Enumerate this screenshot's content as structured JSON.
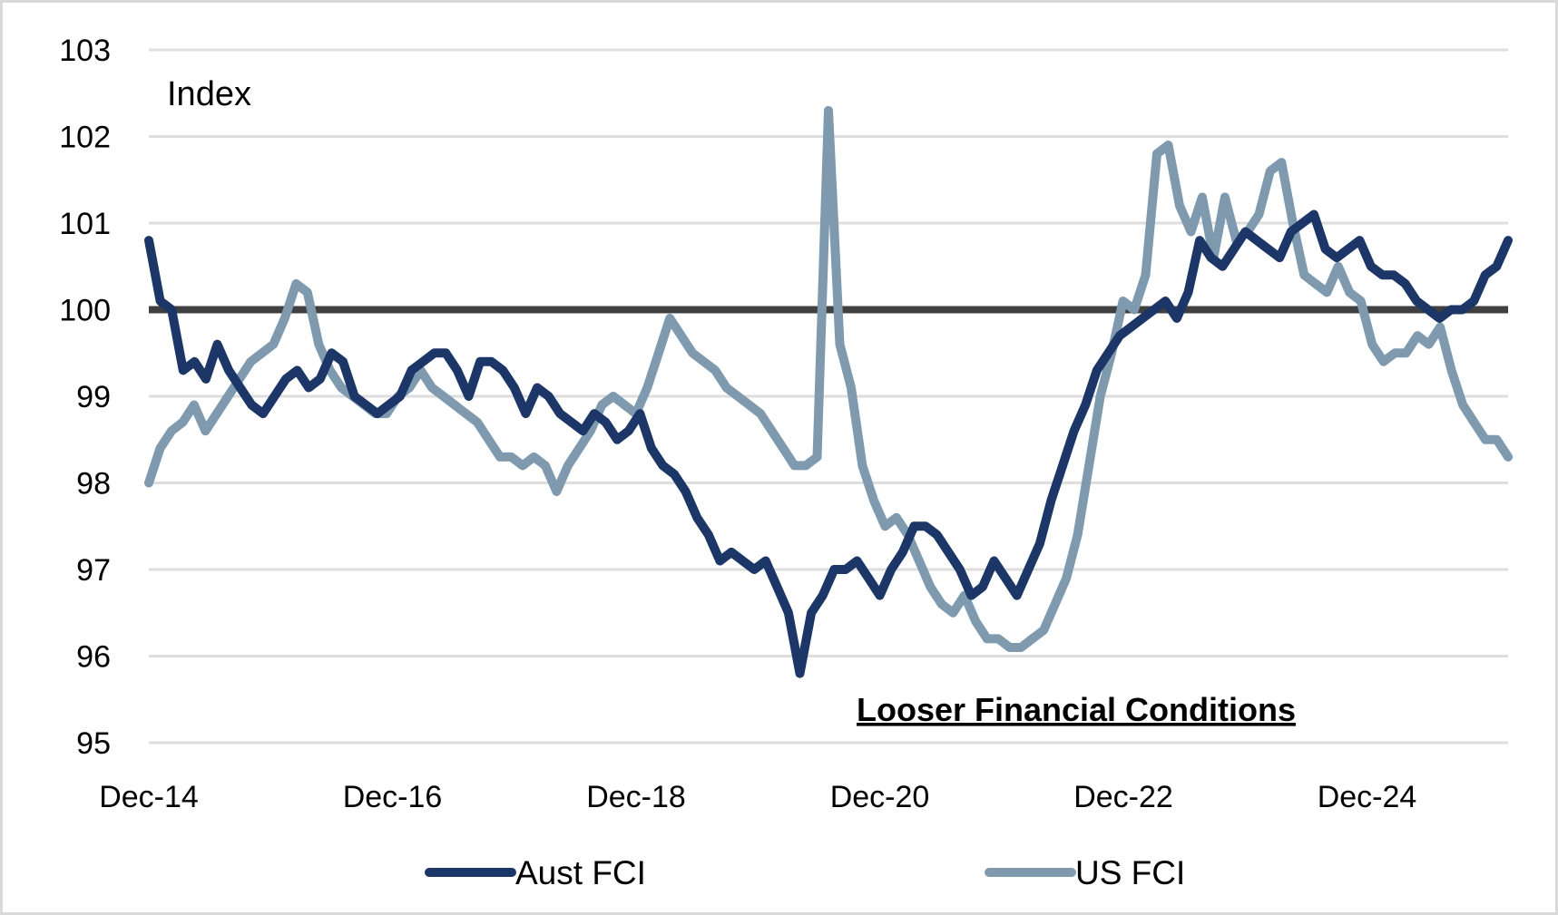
{
  "chart_data": {
    "type": "line",
    "title": "",
    "ylabel": "Index",
    "xlabel": "",
    "ylim": [
      95,
      103
    ],
    "yticks": [
      103,
      102,
      101,
      100,
      99,
      98,
      97,
      96,
      95
    ],
    "ytick_labels": [
      "103",
      "102",
      "101",
      "100",
      "99",
      "98",
      "97",
      "96",
      "95"
    ],
    "xlim": [
      "2014-12",
      "2026-02"
    ],
    "xtick_labels": [
      "Dec-14",
      "Dec-16",
      "Dec-18",
      "Dec-20",
      "Dec-22",
      "Dec-24"
    ],
    "grid": true,
    "reference_line": {
      "value": 100,
      "color": "#404040"
    },
    "annotation": "Looser Financial Conditions",
    "legend": {
      "placement": "bottom",
      "entries": [
        "Aust FCI",
        "US FCI"
      ]
    },
    "series": [
      {
        "name": "Aust FCI",
        "color": "#1b3667",
        "x_start": "2014-12",
        "frequency": "monthly",
        "values": [
          100.8,
          100.1,
          100.0,
          99.3,
          99.4,
          99.2,
          99.6,
          99.3,
          99.1,
          98.9,
          98.8,
          99.0,
          99.2,
          99.3,
          99.1,
          99.2,
          99.5,
          99.4,
          99.0,
          98.9,
          98.8,
          98.9,
          99.0,
          99.3,
          99.4,
          99.5,
          99.5,
          99.3,
          99.0,
          99.4,
          99.4,
          99.3,
          99.1,
          98.8,
          99.1,
          99.0,
          98.8,
          98.7,
          98.6,
          98.8,
          98.7,
          98.5,
          98.6,
          98.8,
          98.4,
          98.2,
          98.1,
          97.9,
          97.6,
          97.4,
          97.1,
          97.2,
          97.1,
          97.0,
          97.1,
          96.8,
          96.5,
          95.8,
          96.5,
          96.7,
          97.0,
          97.0,
          97.1,
          96.9,
          96.7,
          97.0,
          97.2,
          97.5,
          97.5,
          97.4,
          97.2,
          97.0,
          96.7,
          96.8,
          97.1,
          96.9,
          96.7,
          97.0,
          97.3,
          97.8,
          98.2,
          98.6,
          98.9,
          99.3,
          99.5,
          99.7,
          99.8,
          99.9,
          100.0,
          100.1,
          99.9,
          100.2,
          100.8,
          100.6,
          100.5,
          100.7,
          100.9,
          100.8,
          100.7,
          100.6,
          100.9,
          101.0,
          101.1,
          100.7,
          100.6,
          100.7,
          100.8,
          100.5,
          100.4,
          100.4,
          100.3,
          100.1,
          100.0,
          99.9,
          100.0,
          100.0,
          100.1,
          100.4,
          100.5,
          100.8
        ]
      },
      {
        "name": "US FCI",
        "color": "#7f9aaf",
        "x_start": "2014-12",
        "frequency": "monthly",
        "values": [
          98.0,
          98.4,
          98.6,
          98.7,
          98.9,
          98.6,
          98.8,
          99.0,
          99.2,
          99.4,
          99.5,
          99.6,
          99.9,
          100.3,
          100.2,
          99.6,
          99.3,
          99.1,
          99.0,
          98.9,
          98.8,
          98.8,
          99.0,
          99.1,
          99.3,
          99.1,
          99.0,
          98.9,
          98.8,
          98.7,
          98.5,
          98.3,
          98.3,
          98.2,
          98.3,
          98.2,
          97.9,
          98.2,
          98.4,
          98.6,
          98.9,
          99.0,
          98.9,
          98.8,
          99.1,
          99.5,
          99.9,
          99.7,
          99.5,
          99.4,
          99.3,
          99.1,
          99.0,
          98.9,
          98.8,
          98.6,
          98.4,
          98.2,
          98.2,
          98.3,
          102.3,
          99.6,
          99.1,
          98.2,
          97.8,
          97.5,
          97.6,
          97.4,
          97.1,
          96.8,
          96.6,
          96.5,
          96.7,
          96.4,
          96.2,
          96.2,
          96.1,
          96.1,
          96.2,
          96.3,
          96.6,
          96.9,
          97.4,
          98.2,
          99.0,
          99.5,
          100.1,
          100.0,
          100.4,
          101.8,
          101.9,
          101.2,
          100.9,
          101.3,
          100.6,
          101.3,
          100.8,
          100.9,
          101.1,
          101.6,
          101.7,
          101.0,
          100.4,
          100.3,
          100.2,
          100.5,
          100.2,
          100.1,
          99.6,
          99.4,
          99.5,
          99.5,
          99.7,
          99.6,
          99.8,
          99.3,
          98.9,
          98.7,
          98.5,
          98.5,
          98.3
        ]
      }
    ]
  }
}
